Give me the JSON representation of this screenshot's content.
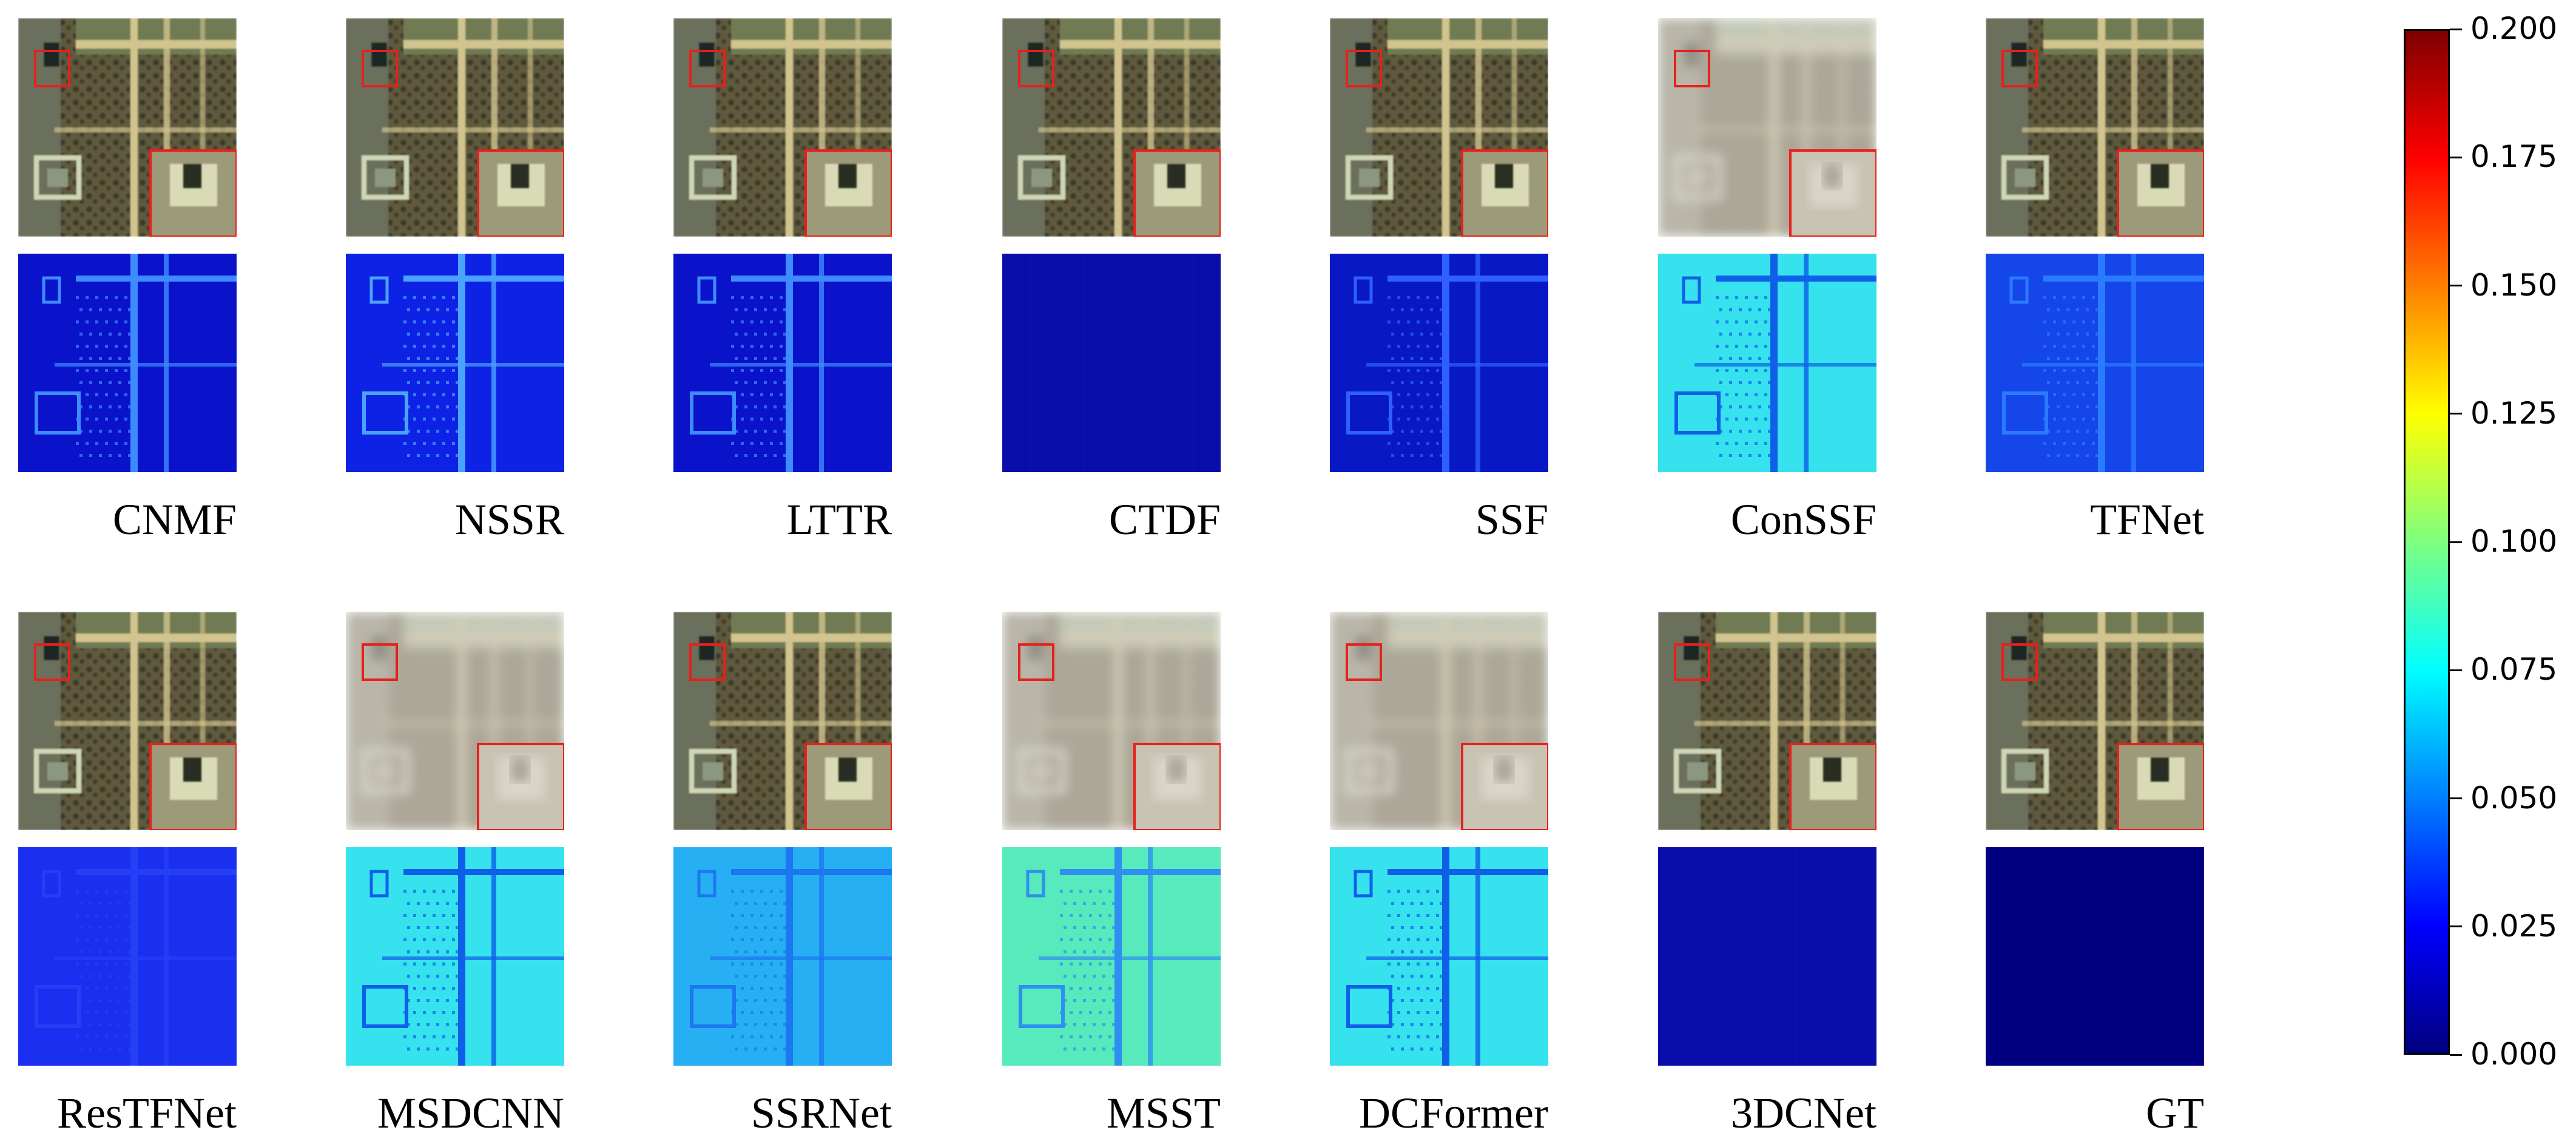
{
  "methods_row1": [
    {
      "name": "CNMF",
      "fused": "sharp",
      "error": "edges"
    },
    {
      "name": "NSSR",
      "fused": "sharp",
      "error": "edges-strong"
    },
    {
      "name": "LTTR",
      "fused": "sharp",
      "error": "edges"
    },
    {
      "name": "CTDF",
      "fused": "sharp",
      "error": "flat"
    },
    {
      "name": "SSF",
      "fused": "sharp",
      "error": "edges-light"
    },
    {
      "name": "ConSSF",
      "fused": "blurred",
      "error": "cyan"
    },
    {
      "name": "TFNet",
      "fused": "sharp",
      "error": "blue-medium"
    }
  ],
  "methods_row2": [
    {
      "name": "ResTFNet",
      "fused": "sharp",
      "error": "blue-light"
    },
    {
      "name": "MSDCNN",
      "fused": "blurred",
      "error": "cyan"
    },
    {
      "name": "SSRNet",
      "fused": "sharp",
      "error": "cyan-blue"
    },
    {
      "name": "MSST",
      "fused": "blurred",
      "error": "green"
    },
    {
      "name": "DCFormer",
      "fused": "blurred",
      "error": "cyan"
    },
    {
      "name": "3DCNet",
      "fused": "sharp",
      "error": "flat"
    },
    {
      "name": "GT",
      "fused": "sharp",
      "error": "zero"
    }
  ],
  "colorbar": {
    "min": 0.0,
    "max": 0.2,
    "ticks": [
      "0.000",
      "0.025",
      "0.050",
      "0.075",
      "0.100",
      "0.125",
      "0.150",
      "0.175",
      "0.200"
    ],
    "colors": [
      "#00007f",
      "#0000ff",
      "#007fff",
      "#00ffff",
      "#7fff7f",
      "#ffff00",
      "#ff7f00",
      "#ff0000",
      "#7f0000"
    ]
  }
}
